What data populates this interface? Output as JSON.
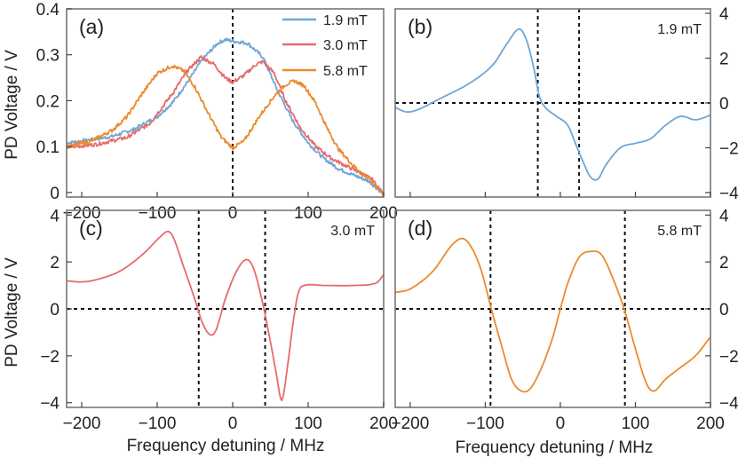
{
  "colors": {
    "b1_9": "#6fa6d6",
    "b3_0": "#e66b6b",
    "b5_8": "#ec8a2e"
  },
  "axes": {
    "xlabel": "Frequency detuning / MHz",
    "ylabel": "PD Voltage / V"
  },
  "legend": {
    "items": [
      {
        "label": "1.9 mT",
        "color": "#6fa6d6"
      },
      {
        "label": "3.0 mT",
        "color": "#e66b6b"
      },
      {
        "label": "5.8 mT",
        "color": "#ec8a2e"
      }
    ]
  },
  "chart_data": [
    {
      "type": "line",
      "panel": "(a)",
      "xlim": [
        -220,
        200
      ],
      "ylim": [
        -0.01,
        0.4
      ],
      "xticks": [
        "-200",
        "-100",
        "0",
        "100",
        "200"
      ],
      "yticks": [
        "0",
        "0.1",
        "0.2",
        "0.3",
        "0.4"
      ],
      "yaxis_side": "left",
      "vlines": [
        0
      ],
      "hlines": [],
      "series": [
        {
          "name": "1.9 mT",
          "color": "#6fa6d6",
          "noisy": true,
          "points": [
            [
              -220,
              0.108
            ],
            [
              -200,
              0.112
            ],
            [
              -160,
              0.122
            ],
            [
              -130,
              0.138
            ],
            [
              -100,
              0.165
            ],
            [
              -80,
              0.195
            ],
            [
              -60,
              0.24
            ],
            [
              -40,
              0.29
            ],
            [
              -20,
              0.325
            ],
            [
              -10,
              0.333
            ],
            [
              0,
              0.33
            ],
            [
              20,
              0.325
            ],
            [
              40,
              0.295
            ],
            [
              60,
              0.22
            ],
            [
              80,
              0.155
            ],
            [
              100,
              0.108
            ],
            [
              120,
              0.075
            ],
            [
              140,
              0.052
            ],
            [
              160,
              0.038
            ],
            [
              180,
              0.025
            ],
            [
              200,
              -0.004
            ]
          ]
        },
        {
          "name": "3.0 mT",
          "color": "#e66b6b",
          "noisy": true,
          "points": [
            [
              -220,
              0.098
            ],
            [
              -180,
              0.105
            ],
            [
              -140,
              0.12
            ],
            [
              -110,
              0.15
            ],
            [
              -80,
              0.215
            ],
            [
              -60,
              0.265
            ],
            [
              -42,
              0.295
            ],
            [
              -25,
              0.28
            ],
            [
              -10,
              0.25
            ],
            [
              0,
              0.24
            ],
            [
              15,
              0.255
            ],
            [
              30,
              0.278
            ],
            [
              40,
              0.285
            ],
            [
              55,
              0.26
            ],
            [
              70,
              0.2
            ],
            [
              90,
              0.14
            ],
            [
              110,
              0.1
            ],
            [
              130,
              0.075
            ],
            [
              150,
              0.058
            ],
            [
              170,
              0.042
            ],
            [
              185,
              0.028
            ],
            [
              200,
              -0.004
            ]
          ]
        },
        {
          "name": "5.8 mT",
          "color": "#ec8a2e",
          "noisy": true,
          "points": [
            [
              -220,
              0.1
            ],
            [
              -190,
              0.11
            ],
            [
              -160,
              0.135
            ],
            [
              -140,
              0.165
            ],
            [
              -120,
              0.215
            ],
            [
              -100,
              0.26
            ],
            [
              -80,
              0.276
            ],
            [
              -65,
              0.265
            ],
            [
              -50,
              0.23
            ],
            [
              -30,
              0.165
            ],
            [
              -15,
              0.12
            ],
            [
              0,
              0.097
            ],
            [
              15,
              0.112
            ],
            [
              35,
              0.165
            ],
            [
              55,
              0.21
            ],
            [
              70,
              0.235
            ],
            [
              82,
              0.243
            ],
            [
              95,
              0.232
            ],
            [
              110,
              0.195
            ],
            [
              125,
              0.14
            ],
            [
              140,
              0.095
            ],
            [
              160,
              0.058
            ],
            [
              180,
              0.03
            ],
            [
              200,
              -0.003
            ]
          ]
        }
      ]
    },
    {
      "type": "line",
      "panel": "(b)",
      "field_label": "1.9 mT",
      "xlim": [
        -220,
        200
      ],
      "ylim": [
        -4.2,
        4.2
      ],
      "xticks": [],
      "yticks": [
        "-4",
        "-2",
        "0",
        "2",
        "4"
      ],
      "yaxis_side": "right",
      "vlines": [
        -30,
        25
      ],
      "hlines": [
        0
      ],
      "series": [
        {
          "name": "1.9 mT",
          "color": "#6fa6d6",
          "noisy": false,
          "points": [
            [
              -220,
              -0.2
            ],
            [
              -205,
              -0.4
            ],
            [
              -190,
              -0.3
            ],
            [
              -160,
              0.2
            ],
            [
              -120,
              0.9
            ],
            [
              -90,
              1.7
            ],
            [
              -70,
              2.7
            ],
            [
              -55,
              3.3
            ],
            [
              -45,
              2.8
            ],
            [
              -35,
              1.5
            ],
            [
              -28,
              0.3
            ],
            [
              -20,
              -0.2
            ],
            [
              -5,
              -0.6
            ],
            [
              10,
              -1.0
            ],
            [
              20,
              -1.8
            ],
            [
              30,
              -2.6
            ],
            [
              40,
              -3.3
            ],
            [
              50,
              -3.4
            ],
            [
              60,
              -2.8
            ],
            [
              80,
              -2.0
            ],
            [
              100,
              -1.8
            ],
            [
              120,
              -1.6
            ],
            [
              140,
              -1.0
            ],
            [
              160,
              -0.6
            ],
            [
              180,
              -0.75
            ],
            [
              200,
              -0.55
            ]
          ]
        }
      ]
    },
    {
      "type": "line",
      "panel": "(c)",
      "field_label": "3.0 mT",
      "xlim": [
        -220,
        200
      ],
      "ylim": [
        -4.2,
        4.2
      ],
      "xticks": [
        "-200",
        "-100",
        "0",
        "100",
        "200"
      ],
      "yticks": [
        "-4",
        "-2",
        "0",
        "2",
        "4"
      ],
      "yaxis_side": "left",
      "vlines": [
        -45,
        43
      ],
      "hlines": [
        0
      ],
      "series": [
        {
          "name": "3.0 mT",
          "color": "#e66b6b",
          "noisy": false,
          "points": [
            [
              -220,
              1.2
            ],
            [
              -200,
              1.15
            ],
            [
              -180,
              1.25
            ],
            [
              -150,
              1.6
            ],
            [
              -120,
              2.3
            ],
            [
              -95,
              3.1
            ],
            [
              -85,
              3.3
            ],
            [
              -78,
              3.0
            ],
            [
              -65,
              1.8
            ],
            [
              -50,
              0.4
            ],
            [
              -40,
              -0.6
            ],
            [
              -30,
              -1.1
            ],
            [
              -22,
              -0.9
            ],
            [
              -10,
              0.4
            ],
            [
              5,
              1.6
            ],
            [
              18,
              2.1
            ],
            [
              28,
              1.7
            ],
            [
              40,
              0.2
            ],
            [
              50,
              -1.4
            ],
            [
              58,
              -2.8
            ],
            [
              65,
              -3.9
            ],
            [
              72,
              -2.6
            ],
            [
              80,
              -0.6
            ],
            [
              87,
              0.7
            ],
            [
              95,
              1.0
            ],
            [
              120,
              1.0
            ],
            [
              160,
              1.0
            ],
            [
              190,
              1.1
            ],
            [
              200,
              1.45
            ]
          ]
        }
      ]
    },
    {
      "type": "line",
      "panel": "(d)",
      "field_label": "5.8 mT",
      "xlim": [
        -220,
        200
      ],
      "ylim": [
        -4.2,
        4.2
      ],
      "xticks": [
        "-200",
        "-100",
        "0",
        "100",
        "200"
      ],
      "yticks": [
        "-4",
        "-2",
        "0",
        "2",
        "4"
      ],
      "yaxis_side": "right",
      "vlines": [
        -93,
        86
      ],
      "hlines": [
        0
      ],
      "series": [
        {
          "name": "5.8 mT",
          "color": "#ec8a2e",
          "noisy": false,
          "points": [
            [
              -220,
              0.7
            ],
            [
              -200,
              0.85
            ],
            [
              -170,
              1.6
            ],
            [
              -145,
              2.7
            ],
            [
              -130,
              3.0
            ],
            [
              -118,
              2.6
            ],
            [
              -105,
              1.6
            ],
            [
              -92,
              0.0
            ],
            [
              -78,
              -1.6
            ],
            [
              -65,
              -3.0
            ],
            [
              -52,
              -3.5
            ],
            [
              -40,
              -3.4
            ],
            [
              -25,
              -2.5
            ],
            [
              -10,
              -1.2
            ],
            [
              0,
              0.0
            ],
            [
              10,
              1.1
            ],
            [
              25,
              2.2
            ],
            [
              40,
              2.45
            ],
            [
              55,
              2.3
            ],
            [
              70,
              1.3
            ],
            [
              85,
              0.0
            ],
            [
              100,
              -1.7
            ],
            [
              115,
              -3.2
            ],
            [
              125,
              -3.5
            ],
            [
              140,
              -3.0
            ],
            [
              160,
              -2.5
            ],
            [
              180,
              -2.0
            ],
            [
              200,
              -1.2
            ]
          ]
        }
      ]
    }
  ]
}
